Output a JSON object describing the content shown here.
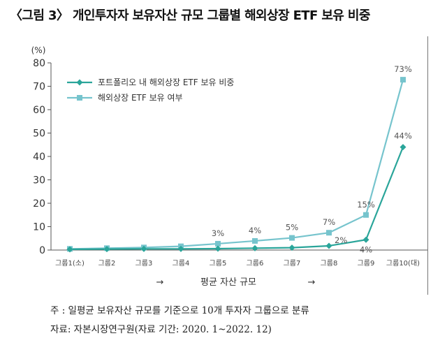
{
  "title": "〈그림 3〉 개인투자자 보유자산 규모 그룹별 해외상장 ETF 보유 비중",
  "chart_data": {
    "type": "line",
    "unit_label": "(%)",
    "categories": [
      "그룹1(소)",
      "그룹2",
      "그룹3",
      "그룹4",
      "그룹5",
      "그룹6",
      "그룹7",
      "그룹8",
      "그룹9",
      "그룹10(대)"
    ],
    "ylim": [
      0,
      80
    ],
    "yticks": [
      0,
      10,
      20,
      30,
      40,
      50,
      60,
      70,
      80
    ],
    "xlabel": "평균 자산 규모",
    "xlabel_arrow_left": "→",
    "xlabel_arrow_right": "→",
    "legend_position": "top-left",
    "grid": false,
    "series": [
      {
        "name": "포트폴리오 내 해외상장 ETF 보유 비중",
        "color": "#2aa59a",
        "marker": "diamond",
        "values": [
          0.3,
          0.4,
          0.5,
          0.5,
          0.6,
          0.8,
          1.0,
          1.8,
          4.4,
          44.0
        ],
        "labels": [
          "",
          "",
          "",
          "",
          "",
          "",
          "",
          "2%",
          "4%",
          "44%"
        ]
      },
      {
        "name": "해외상장 ETF 보유 여부",
        "color": "#76c4cd",
        "marker": "square",
        "values": [
          0.5,
          0.8,
          1.1,
          1.6,
          2.7,
          3.9,
          5.2,
          7.4,
          15.0,
          72.8
        ],
        "labels": [
          "",
          "",
          "",
          "",
          "3%",
          "4%",
          "5%",
          "7%",
          "15%",
          "73%"
        ]
      }
    ]
  },
  "notes": {
    "note": "주   : 일평균 보유자산 규모를 기준으로 10개 투자자 그룹으로 분류",
    "source": "자료: 자본시장연구원(자료 기간: 2020. 1~2022. 12)"
  }
}
